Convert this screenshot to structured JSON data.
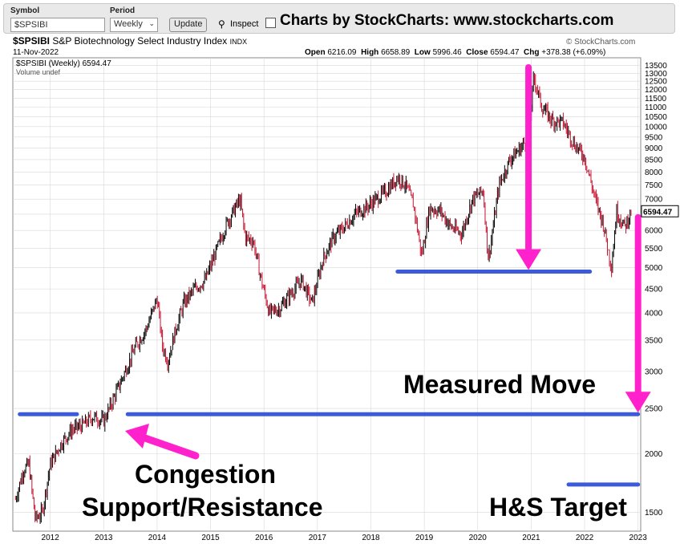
{
  "toolbar": {
    "symbol_label": "Symbol",
    "symbol_value": "$SPSIBI",
    "period_label": "Period",
    "period_value": "Weekly",
    "update_label": "Update",
    "inspect_label": "Inspect",
    "banner": "Charts by StockCharts:  www.stockcharts.com"
  },
  "header": {
    "symbol": "$SPSIBI",
    "name": "S&P Biotechnology Select Industry Index",
    "exchange": "INDX",
    "watermark": "© StockCharts.com",
    "date": "11-Nov-2022",
    "open_label": "Open",
    "open": "6216.09",
    "high_label": "High",
    "high": "6658.89",
    "low_label": "Low",
    "low": "5996.46",
    "close_label": "Close",
    "close": "6594.47",
    "chg_label": "Chg",
    "chg": "+378.38 (+6.09%)",
    "legend_series": "$SPSIBI (Weekly) 6594.47",
    "legend_volume": "Volume undef"
  },
  "colors": {
    "up": "#000000",
    "down": "#c8102e",
    "annotation_line": "#3b5bdb",
    "arrow": "#ff22cc",
    "grid": "#d8d8d8"
  },
  "chart_data": {
    "type": "line",
    "y_scale": "log",
    "ylim": [
      1400,
      13700
    ],
    "xlim": [
      2011.3,
      2023.05
    ],
    "y_ticks": [
      1500,
      2000,
      2500,
      3000,
      3500,
      4000,
      4500,
      5000,
      5500,
      6000,
      6500,
      7000,
      7500,
      8000,
      8500,
      9000,
      9500,
      10000,
      10500,
      11000,
      11500,
      12000,
      12500,
      13000,
      13500
    ],
    "x_ticks": [
      2012,
      2013,
      2014,
      2015,
      2016,
      2017,
      2018,
      2019,
      2020,
      2021,
      2022,
      2023
    ],
    "last_value_label": "6594.47",
    "series": [
      {
        "values_x": [
          2011.35,
          2011.5,
          2011.6,
          2011.72,
          2011.85,
          2012.0,
          2012.2,
          2012.4,
          2012.6,
          2012.8,
          2013.0,
          2013.2,
          2013.4,
          2013.6,
          2013.8,
          2014.0,
          2014.1,
          2014.2,
          2014.35,
          2014.5,
          2014.7,
          2014.9,
          2015.1,
          2015.3,
          2015.55,
          2015.65,
          2015.8,
          2015.95,
          2016.1,
          2016.3,
          2016.5,
          2016.7,
          2016.9,
          2017.1,
          2017.3,
          2017.5,
          2017.7,
          2017.9,
          2018.1,
          2018.3,
          2018.5,
          2018.65,
          2018.8,
          2018.95,
          2019.1,
          2019.3,
          2019.5,
          2019.7,
          2019.9,
          2020.1,
          2020.2,
          2020.4,
          2020.6,
          2020.8,
          2020.95,
          2021.05,
          2021.2,
          2021.4,
          2021.6,
          2021.8,
          2022.0,
          2022.2,
          2022.35,
          2022.5,
          2022.6,
          2022.75,
          2022.87
        ],
        "values_y": [
          1600,
          1850,
          1900,
          1450,
          1500,
          1900,
          2100,
          2250,
          2300,
          2400,
          2350,
          2650,
          3000,
          3400,
          3700,
          4300,
          3400,
          3150,
          3700,
          4200,
          4500,
          4700,
          5400,
          6200,
          7000,
          5800,
          5700,
          4700,
          4000,
          4100,
          4400,
          4700,
          4200,
          5200,
          5800,
          6100,
          6500,
          6700,
          7000,
          7300,
          7800,
          7500,
          6800,
          5300,
          6700,
          6600,
          6100,
          5900,
          7000,
          7300,
          5200,
          7500,
          8500,
          9000,
          9500,
          12800,
          11000,
          10300,
          10200,
          9200,
          8600,
          7000,
          6200,
          5000,
          6600,
          6100,
          6594.47
        ]
      }
    ],
    "annotations": {
      "measured_move": "Measured Move",
      "congestion_line1": "Congestion",
      "congestion_line2": "Support/Resistance",
      "target": "H&S Target",
      "neckline_level": 4900,
      "support_level": 2430,
      "target_level": 1720
    }
  }
}
